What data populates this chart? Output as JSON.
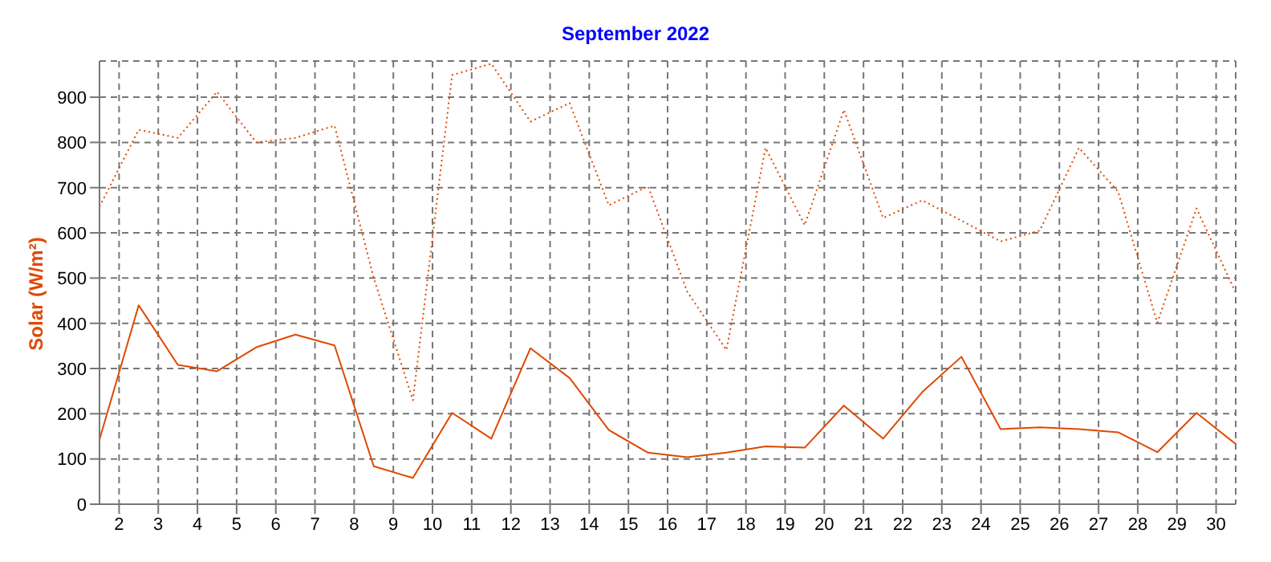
{
  "chart_data": {
    "type": "line",
    "title": "September 2022",
    "ylabel": "Solar (W/m²)",
    "x": [
      1.5,
      2.5,
      3.5,
      4.5,
      5.5,
      6.5,
      7.5,
      8.5,
      9.5,
      10.5,
      11.5,
      12.5,
      13.5,
      14.5,
      15.5,
      16.5,
      17.5,
      18.5,
      19.5,
      20.5,
      21.5,
      22.5,
      23.5,
      24.5,
      25.5,
      26.5,
      27.5,
      28.5,
      29.5,
      30.5
    ],
    "series": [
      {
        "color": "#e04800",
        "line_style": "dotted",
        "values": [
          658,
          828,
          810,
          912,
          800,
          810,
          837,
          500,
          230,
          949,
          974,
          846,
          887,
          661,
          703,
          470,
          341,
          788,
          617,
          872,
          633,
          672,
          627,
          581,
          605,
          788,
          691,
          401,
          654,
          468
        ]
      },
      {
        "color": "#e04800",
        "line_style": "solid",
        "values": [
          143,
          440,
          308,
          294,
          347,
          375,
          351,
          84,
          58,
          202,
          145,
          345,
          279,
          164,
          114,
          104,
          114,
          128,
          125,
          218,
          145,
          248,
          326,
          166,
          170,
          166,
          159,
          115,
          202,
          133
        ]
      }
    ],
    "xlim": [
      1.5,
      30.5
    ],
    "xticks": [
      2,
      3,
      4,
      5,
      6,
      7,
      8,
      9,
      10,
      11,
      12,
      13,
      14,
      15,
      16,
      17,
      18,
      19,
      20,
      21,
      22,
      23,
      24,
      25,
      26,
      27,
      28,
      29,
      30
    ],
    "ylim": [
      0,
      980
    ],
    "yticks": [
      0,
      100,
      200,
      300,
      400,
      500,
      600,
      700,
      800,
      900
    ],
    "grid": true,
    "marker": "none"
  }
}
